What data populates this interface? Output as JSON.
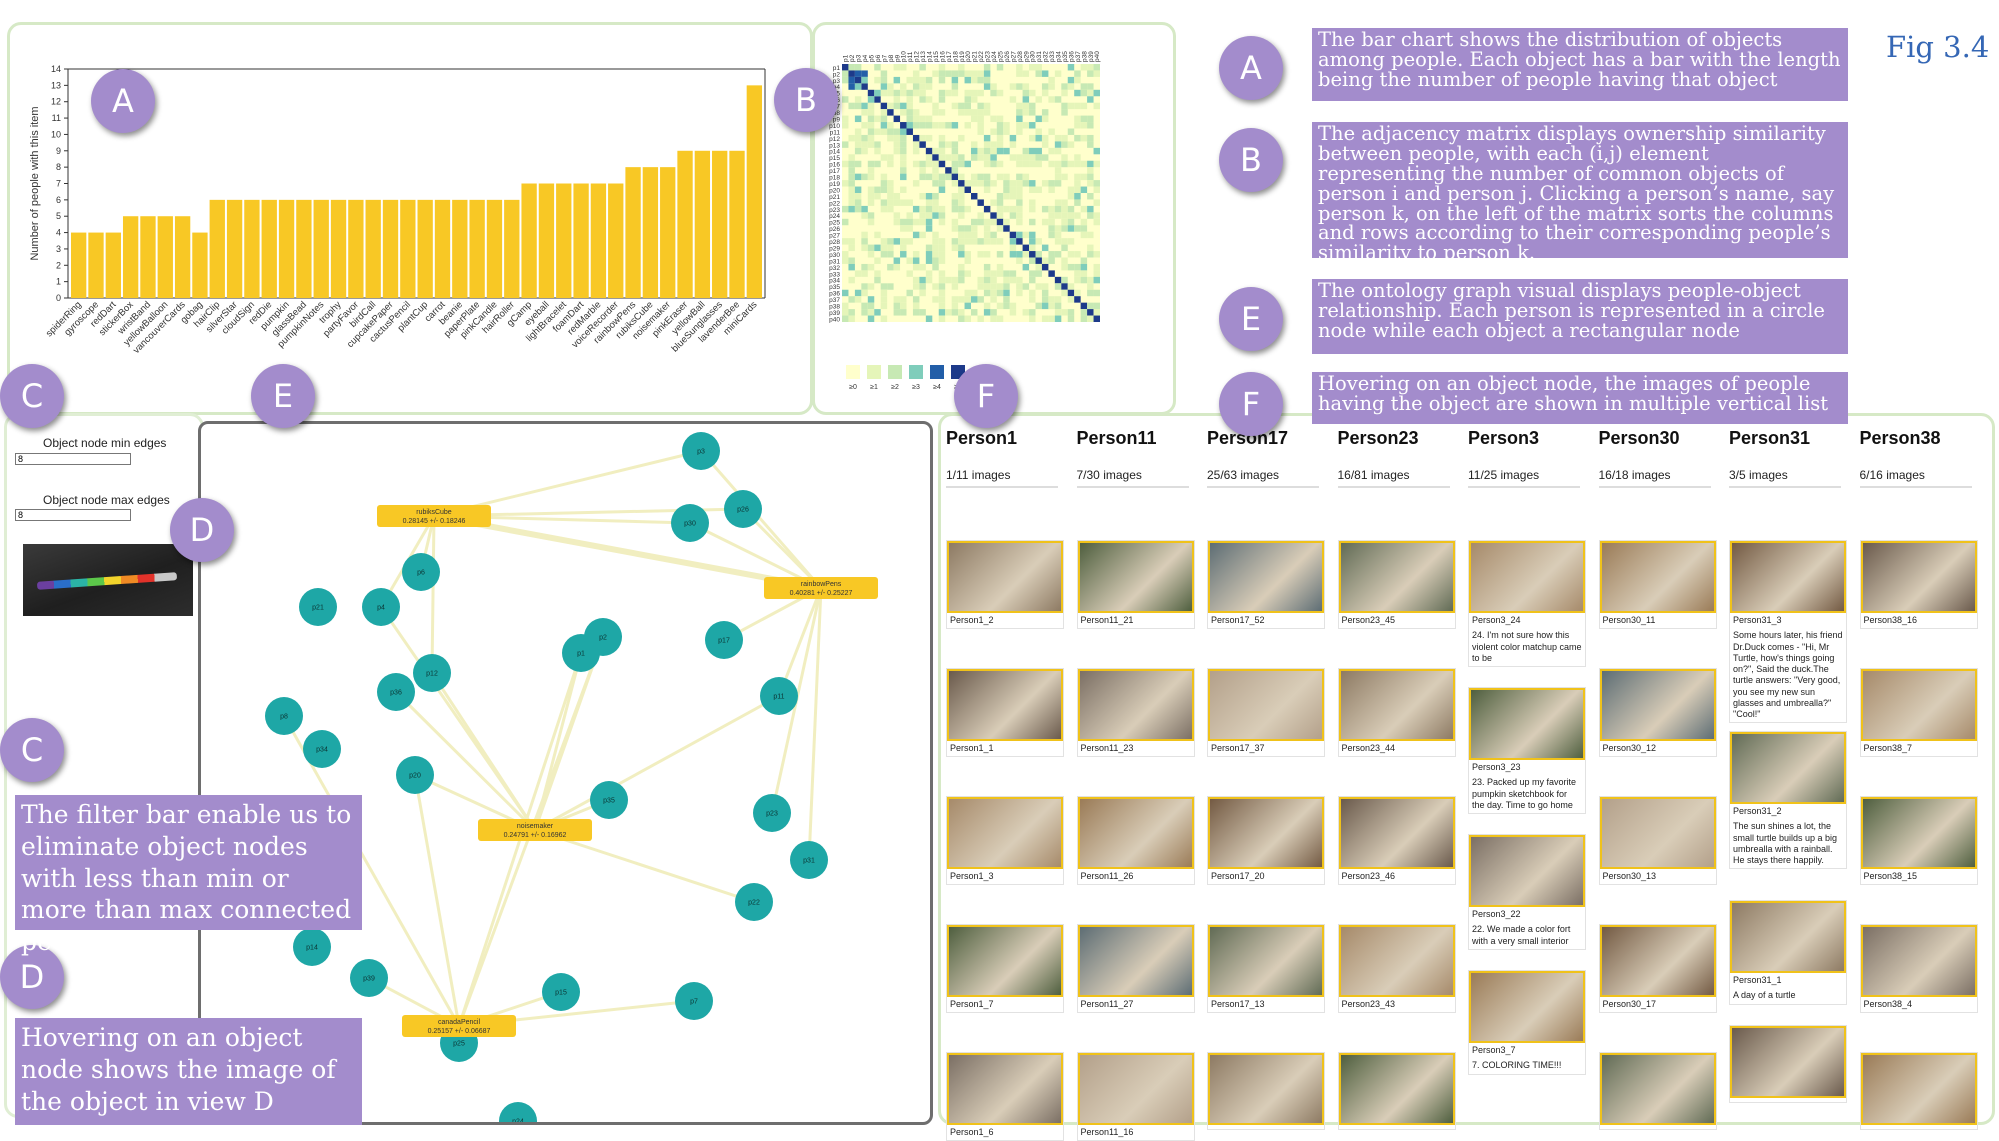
{
  "figure_label": "Fig 3.4",
  "callouts": {
    "a": "A",
    "b": "B",
    "c": "C",
    "d": "D",
    "e": "E",
    "f": "F"
  },
  "notes": {
    "a": "The bar chart shows the distribution of objects among people. Each object has a bar with the length being the number of people having that object",
    "b": "The adjacency matrix displays ownership similarity between people, with each (i,j) element representing the number of common objects of person i and person j. Clicking a person’s name, say person k, on the left of the matrix sorts the columns and rows according to their corresponding people’s similarity to person k.",
    "e": "The ontology graph visual displays people-object relationship. Each person is represented in a circle node while each object a rectangular node",
    "f": "Hovering on an object node, the images of people having the object are shown in multiple vertical list",
    "c": "The filter bar enable us to eliminate object nodes with less than min or more than max connected people",
    "d": "Hovering on an object node shows the image of the object in view D"
  },
  "chart_data": {
    "type": "bar",
    "ylabel": "Number of people with this item",
    "xlabel": "",
    "ylim": [
      0,
      14
    ],
    "categories": [
      "spiderRing",
      "gyroscope",
      "redDart",
      "stickerBox",
      "wristBand",
      "yellowBalloon",
      "vancouverCards",
      "gobag",
      "hairClip",
      "silverStar",
      "cloudSign",
      "redDie",
      "pumpkin",
      "glassBead",
      "pumpkinNotes",
      "trophy",
      "partyFavor",
      "birdCall",
      "cupcakePaper",
      "cactusPencil",
      "plantCup",
      "carrot",
      "beanie",
      "paperPlate",
      "pinkCandle",
      "hairRoller",
      "gCamp",
      "eyeball",
      "lightBracelet",
      "foamDart",
      "redMarble",
      "voiceRecorder",
      "rainbowPens",
      "rubiksCube",
      "noisemaker",
      "pinkEraser",
      "yellowBall",
      "blueSunglasses",
      "lavenderBee",
      "miniCards"
    ],
    "values": [
      4,
      4,
      4,
      5,
      5,
      5,
      5,
      4,
      6,
      6,
      6,
      6,
      6,
      6,
      6,
      6,
      6,
      6,
      6,
      6,
      6,
      6,
      6,
      6,
      6,
      6,
      7,
      7,
      7,
      7,
      7,
      7,
      8,
      8,
      8,
      9,
      9,
      9,
      9,
      13
    ],
    "color": "#f8c825"
  },
  "matrix": {
    "people": [
      "p1",
      "p2",
      "p3",
      "p4",
      "p5",
      "p6",
      "p7",
      "p8",
      "p9",
      "p10",
      "p11",
      "p12",
      "p13",
      "p14",
      "p15",
      "p16",
      "p17",
      "p18",
      "p19",
      "p20",
      "p21",
      "p22",
      "p23",
      "p24",
      "p25",
      "p26",
      "p27",
      "p28",
      "p29",
      "p30",
      "p31",
      "p32",
      "p33",
      "p34",
      "p35",
      "p36",
      "p37",
      "p38",
      "p39",
      "p40"
    ],
    "legend": [
      "≥0",
      "≥1",
      "≥2",
      "≥3",
      "≥4",
      "≥5"
    ],
    "colors": [
      "#ffffcc",
      "#e5f5b9",
      "#c7e9b4",
      "#7fcdbb",
      "#225ea8",
      "#1d3a8a"
    ]
  },
  "filter": {
    "min_label": "Object node min edges",
    "min_value": "8",
    "max_label": "Object node max edges",
    "max_value": "8"
  },
  "graph": {
    "objects": [
      {
        "name": "rubiksCube",
        "stat": "0.28145 +/- 0.18246"
      },
      {
        "name": "rainbowPens",
        "stat": "0.40281 +/- 0.25227"
      },
      {
        "name": "noisemaker",
        "stat": "0.24791 +/- 0.16962"
      },
      {
        "name": "canadaPencil",
        "stat": "0.25157 +/- 0.06687"
      }
    ],
    "people": [
      "p3",
      "p30",
      "p26",
      "p6",
      "p21",
      "p4",
      "p17",
      "p1",
      "p2",
      "p12",
      "p36",
      "p8",
      "p34",
      "p11",
      "p20",
      "p35",
      "p23",
      "p31",
      "p22",
      "p14",
      "p39",
      "p15",
      "p7",
      "p25"
    ]
  },
  "gallery": [
    {
      "name": "Person1",
      "count": "1/11 images",
      "cards": [
        {
          "label": "Person1_2",
          "text": ""
        },
        {
          "label": "Person1_1",
          "text": ""
        },
        {
          "label": "Person1_3",
          "text": ""
        },
        {
          "label": "Person1_7",
          "text": ""
        },
        {
          "label": "Person1_6",
          "text": ""
        }
      ]
    },
    {
      "name": "Person11",
      "count": "7/30 images",
      "cards": [
        {
          "label": "Person11_21",
          "text": ""
        },
        {
          "label": "Person11_23",
          "text": ""
        },
        {
          "label": "Person11_26",
          "text": ""
        },
        {
          "label": "Person11_27",
          "text": ""
        },
        {
          "label": "Person11_16",
          "text": ""
        },
        {
          "label": "",
          "text": ""
        }
      ]
    },
    {
      "name": "Person17",
      "count": "25/63 images",
      "cards": [
        {
          "label": "Person17_52",
          "text": ""
        },
        {
          "label": "Person17_37",
          "text": ""
        },
        {
          "label": "Person17_20",
          "text": ""
        },
        {
          "label": "Person17_13",
          "text": ""
        },
        {
          "label": "",
          "text": ""
        }
      ]
    },
    {
      "name": "Person23",
      "count": "16/81 images",
      "cards": [
        {
          "label": "Person23_45",
          "text": ""
        },
        {
          "label": "Person23_44",
          "text": ""
        },
        {
          "label": "Person23_46",
          "text": ""
        },
        {
          "label": "Person23_43",
          "text": ""
        },
        {
          "label": "",
          "text": ""
        }
      ]
    },
    {
      "name": "Person3",
      "count": "11/25 images",
      "cards": [
        {
          "label": "Person3_24",
          "text": "24. I'm not sure how this violent color matchup came to be"
        },
        {
          "label": "Person3_23",
          "text": "23. Packed up my favorite pumpkin sketchbook for the day. Time to go home"
        },
        {
          "label": "Person3_22",
          "text": "22. We made a color fort with a very small interior"
        },
        {
          "label": "Person3_7",
          "text": "7. COLORING TIME!!!"
        }
      ]
    },
    {
      "name": "Person30",
      "count": "16/18 images",
      "cards": [
        {
          "label": "Person30_11",
          "text": ""
        },
        {
          "label": "Person30_12",
          "text": ""
        },
        {
          "label": "Person30_13",
          "text": ""
        },
        {
          "label": "Person30_17",
          "text": ""
        },
        {
          "label": "",
          "text": ""
        }
      ]
    },
    {
      "name": "Person31",
      "count": "3/5 images",
      "cards": [
        {
          "label": "Person31_3",
          "text": "Some hours later, his friend Dr.Duck comes - \"Hi, Mr Turtle, how's things going on?\", Said the duck.The turtle answers: \"Very good, you see my new sun glasses and umbrealla?\" \"Cool!\""
        },
        {
          "label": "Person31_2",
          "text": "The sun shines a lot, the small turtle builds up a big umbrealla with a rainball. He stays there happily."
        },
        {
          "label": "Person31_1",
          "text": "A day of a turtle"
        },
        {
          "label": "",
          "text": ""
        }
      ]
    },
    {
      "name": "Person38",
      "count": "6/16 images",
      "cards": [
        {
          "label": "Person38_16",
          "text": ""
        },
        {
          "label": "Person38_7",
          "text": ""
        },
        {
          "label": "Person38_15",
          "text": ""
        },
        {
          "label": "Person38_4",
          "text": ""
        },
        {
          "label": "",
          "text": ""
        }
      ]
    }
  ]
}
